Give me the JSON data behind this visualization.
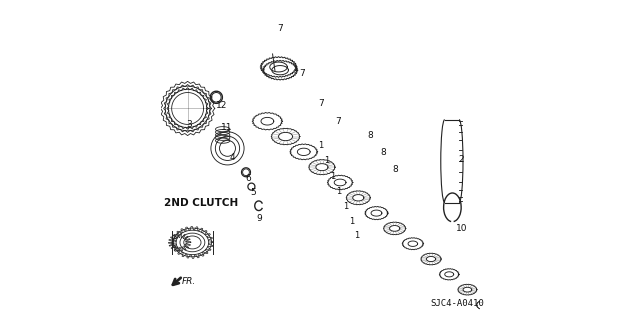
{
  "title": "",
  "bg_color": "#ffffff",
  "label_2nd_clutch": "2ND CLUTCH",
  "part_label": "SJC4-A0410",
  "fr_label": "FR.",
  "line_color": "#222222",
  "text_color": "#111111"
}
